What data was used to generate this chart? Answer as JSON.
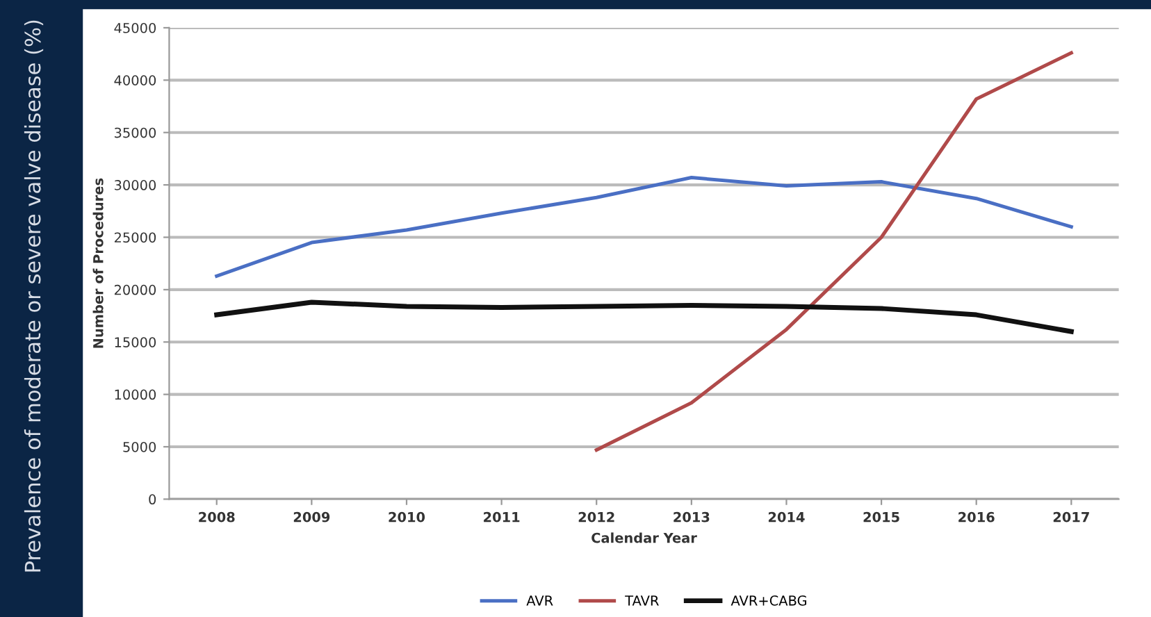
{
  "chart_data": {
    "type": "line",
    "xlabel": "Calendar Year",
    "ylabel": "Number of Procedures",
    "annotations": [
      "Prevalence of moderate or severe valve disease (%)"
    ],
    "categories": [
      "2008",
      "2009",
      "2010",
      "2011",
      "2012",
      "2013",
      "2014",
      "2015",
      "2016",
      "2017"
    ],
    "series": [
      {
        "name": "AVR",
        "color": "#4a6fc4",
        "values": [
          21300,
          24500,
          25700,
          27300,
          28800,
          30700,
          29900,
          30300,
          28700,
          26000
        ]
      },
      {
        "name": "TAVR",
        "color": "#b04a4a",
        "values": [
          null,
          null,
          null,
          null,
          4700,
          9200,
          16200,
          25000,
          38200,
          42600
        ]
      },
      {
        "name": "AVR+CABG",
        "color": "#111111",
        "values": [
          17600,
          18800,
          18400,
          18300,
          18400,
          18500,
          18400,
          18200,
          17600,
          16000
        ]
      }
    ],
    "ylim": [
      0,
      45000
    ],
    "yticks": [
      0,
      5000,
      10000,
      15000,
      20000,
      25000,
      30000,
      35000,
      40000,
      45000
    ],
    "grid": "y",
    "legend": "bottom",
    "marker": "none",
    "line_style": "solid"
  }
}
